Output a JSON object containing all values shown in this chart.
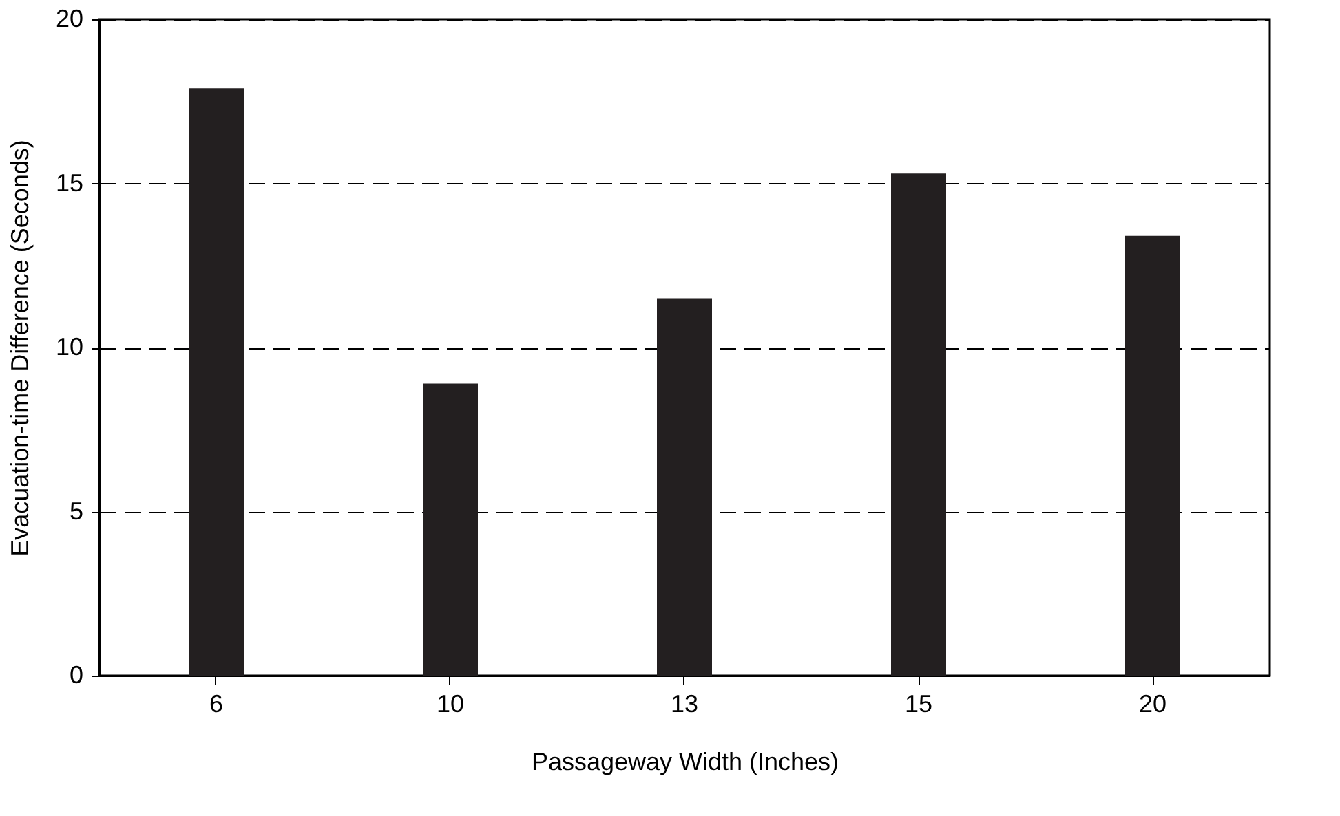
{
  "chart_data": {
    "type": "bar",
    "xlabel": "Passageway Width (Inches)",
    "ylabel": "Evacuation-time Difference (Seconds)",
    "categories": [
      "6",
      "10",
      "13",
      "15",
      "20"
    ],
    "values": [
      17.9,
      8.9,
      11.5,
      15.3,
      13.4
    ],
    "color": "#231f20",
    "ylim": [
      0,
      20
    ],
    "yticks": [
      0,
      5,
      10,
      15,
      20
    ],
    "grid": "y"
  }
}
